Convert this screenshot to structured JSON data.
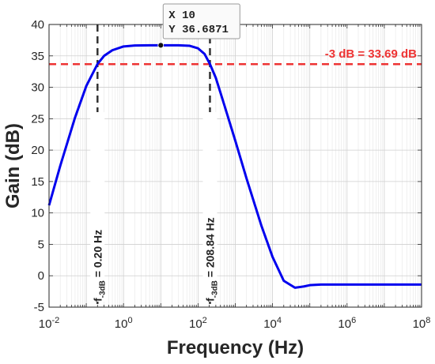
{
  "chart_data": {
    "type": "line",
    "title": "",
    "xlabel": "Frequency (Hz)",
    "ylabel": "Gain (dB)",
    "xscale": "log",
    "xlim": [
      0.01,
      100000000
    ],
    "ylim": [
      -5,
      40
    ],
    "grid": true,
    "x_ticks": [
      {
        "value": 0.01,
        "base": "10",
        "exp": "-2"
      },
      {
        "value": 1,
        "base": "10",
        "exp": "0"
      },
      {
        "value": 100,
        "base": "10",
        "exp": "2"
      },
      {
        "value": 10000,
        "base": "10",
        "exp": "4"
      },
      {
        "value": 1000000,
        "base": "10",
        "exp": "6"
      },
      {
        "value": 100000000,
        "base": "10",
        "exp": "8"
      }
    ],
    "y_ticks": [
      -5,
      0,
      5,
      10,
      15,
      20,
      25,
      30,
      35,
      40
    ],
    "series": [
      {
        "color": "#0000ee",
        "x": [
          0.01,
          0.02,
          0.05,
          0.1,
          0.2,
          0.3,
          0.5,
          1,
          2,
          5,
          10,
          30,
          60,
          100,
          150,
          208.84,
          300,
          500,
          1000,
          2000,
          5000,
          10000,
          20000,
          40000,
          70000,
          100000,
          200000,
          1000000,
          10000000,
          100000000
        ],
        "y": [
          11.2,
          17.5,
          25.2,
          30.2,
          33.7,
          35.0,
          35.9,
          36.5,
          36.65,
          36.68,
          36.69,
          36.68,
          36.6,
          36.2,
          35.3,
          33.69,
          31.5,
          27.3,
          21.5,
          15.5,
          8.0,
          3.0,
          -0.8,
          -1.9,
          -1.7,
          -1.5,
          -1.4,
          -1.4,
          -1.4,
          -1.4
        ]
      }
    ],
    "hline": {
      "y": 33.69,
      "label": "-3 dB = 33.69 dB",
      "color": "#ee3333"
    },
    "vlines": [
      {
        "x": 0.2,
        "label_main": "= 0.20 Hz",
        "label_f": "f",
        "label_sub": "-3dB"
      },
      {
        "x": 208.84,
        "label_main": "= 208.84 Hz",
        "label_f": "f",
        "label_sub": "-3dB"
      }
    ],
    "datatip": {
      "x": 10,
      "y": 36.6871,
      "x_text": "X 10",
      "y_text": "Y 36.6871"
    }
  }
}
